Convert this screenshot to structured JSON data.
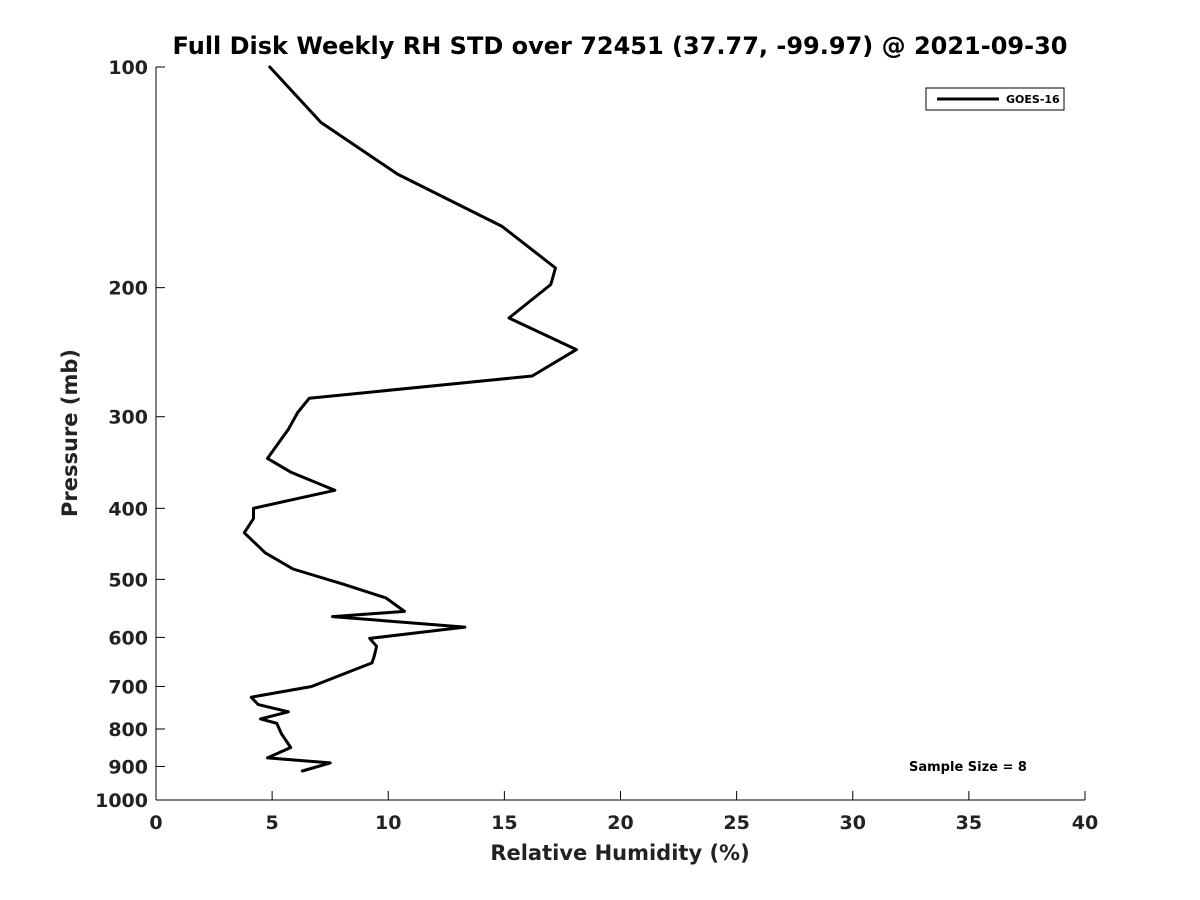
{
  "chart_data": {
    "type": "line",
    "title": "Full Disk Weekly RH STD over 72451 (37.77, -99.97) @ 2021-09-30",
    "xlabel": "Relative Humidity (%)",
    "ylabel": "Pressure (mb)",
    "xlim": [
      0,
      40
    ],
    "ylim": [
      1000,
      100
    ],
    "y_scale": "log",
    "x_ticks": [
      0,
      5,
      10,
      15,
      20,
      25,
      30,
      35,
      40
    ],
    "y_ticks": [
      100,
      200,
      300,
      400,
      500,
      600,
      700,
      800,
      900,
      1000
    ],
    "grid": false,
    "legend_position": "top-right",
    "series": [
      {
        "name": "GOES-16",
        "color": "#000000",
        "x": [
          4.9,
          7.1,
          10.4,
          14.9,
          17.2,
          17.0,
          15.2,
          18.1,
          16.2,
          6.6,
          6.1,
          5.7,
          4.8,
          5.8,
          7.7,
          4.2,
          4.2,
          3.8,
          4.7,
          5.9,
          8.1,
          9.9,
          10.7,
          7.6,
          13.3,
          9.2,
          9.5,
          9.4,
          9.3,
          8.5,
          6.7,
          4.1,
          4.4,
          5.7,
          4.5,
          5.2,
          5.4,
          5.8,
          4.8,
          7.5,
          6.3
        ],
        "y": [
          100,
          119,
          140,
          165,
          188,
          198,
          220,
          243,
          264,
          283,
          296,
          312,
          342,
          357,
          378,
          400,
          413,
          432,
          460,
          484,
          508,
          530,
          553,
          562,
          581,
          602,
          617,
          636,
          650,
          665,
          700,
          724,
          741,
          758,
          775,
          786,
          812,
          848,
          876,
          890,
          913
        ]
      }
    ],
    "annotations": [
      "Sample Size = 8"
    ]
  }
}
